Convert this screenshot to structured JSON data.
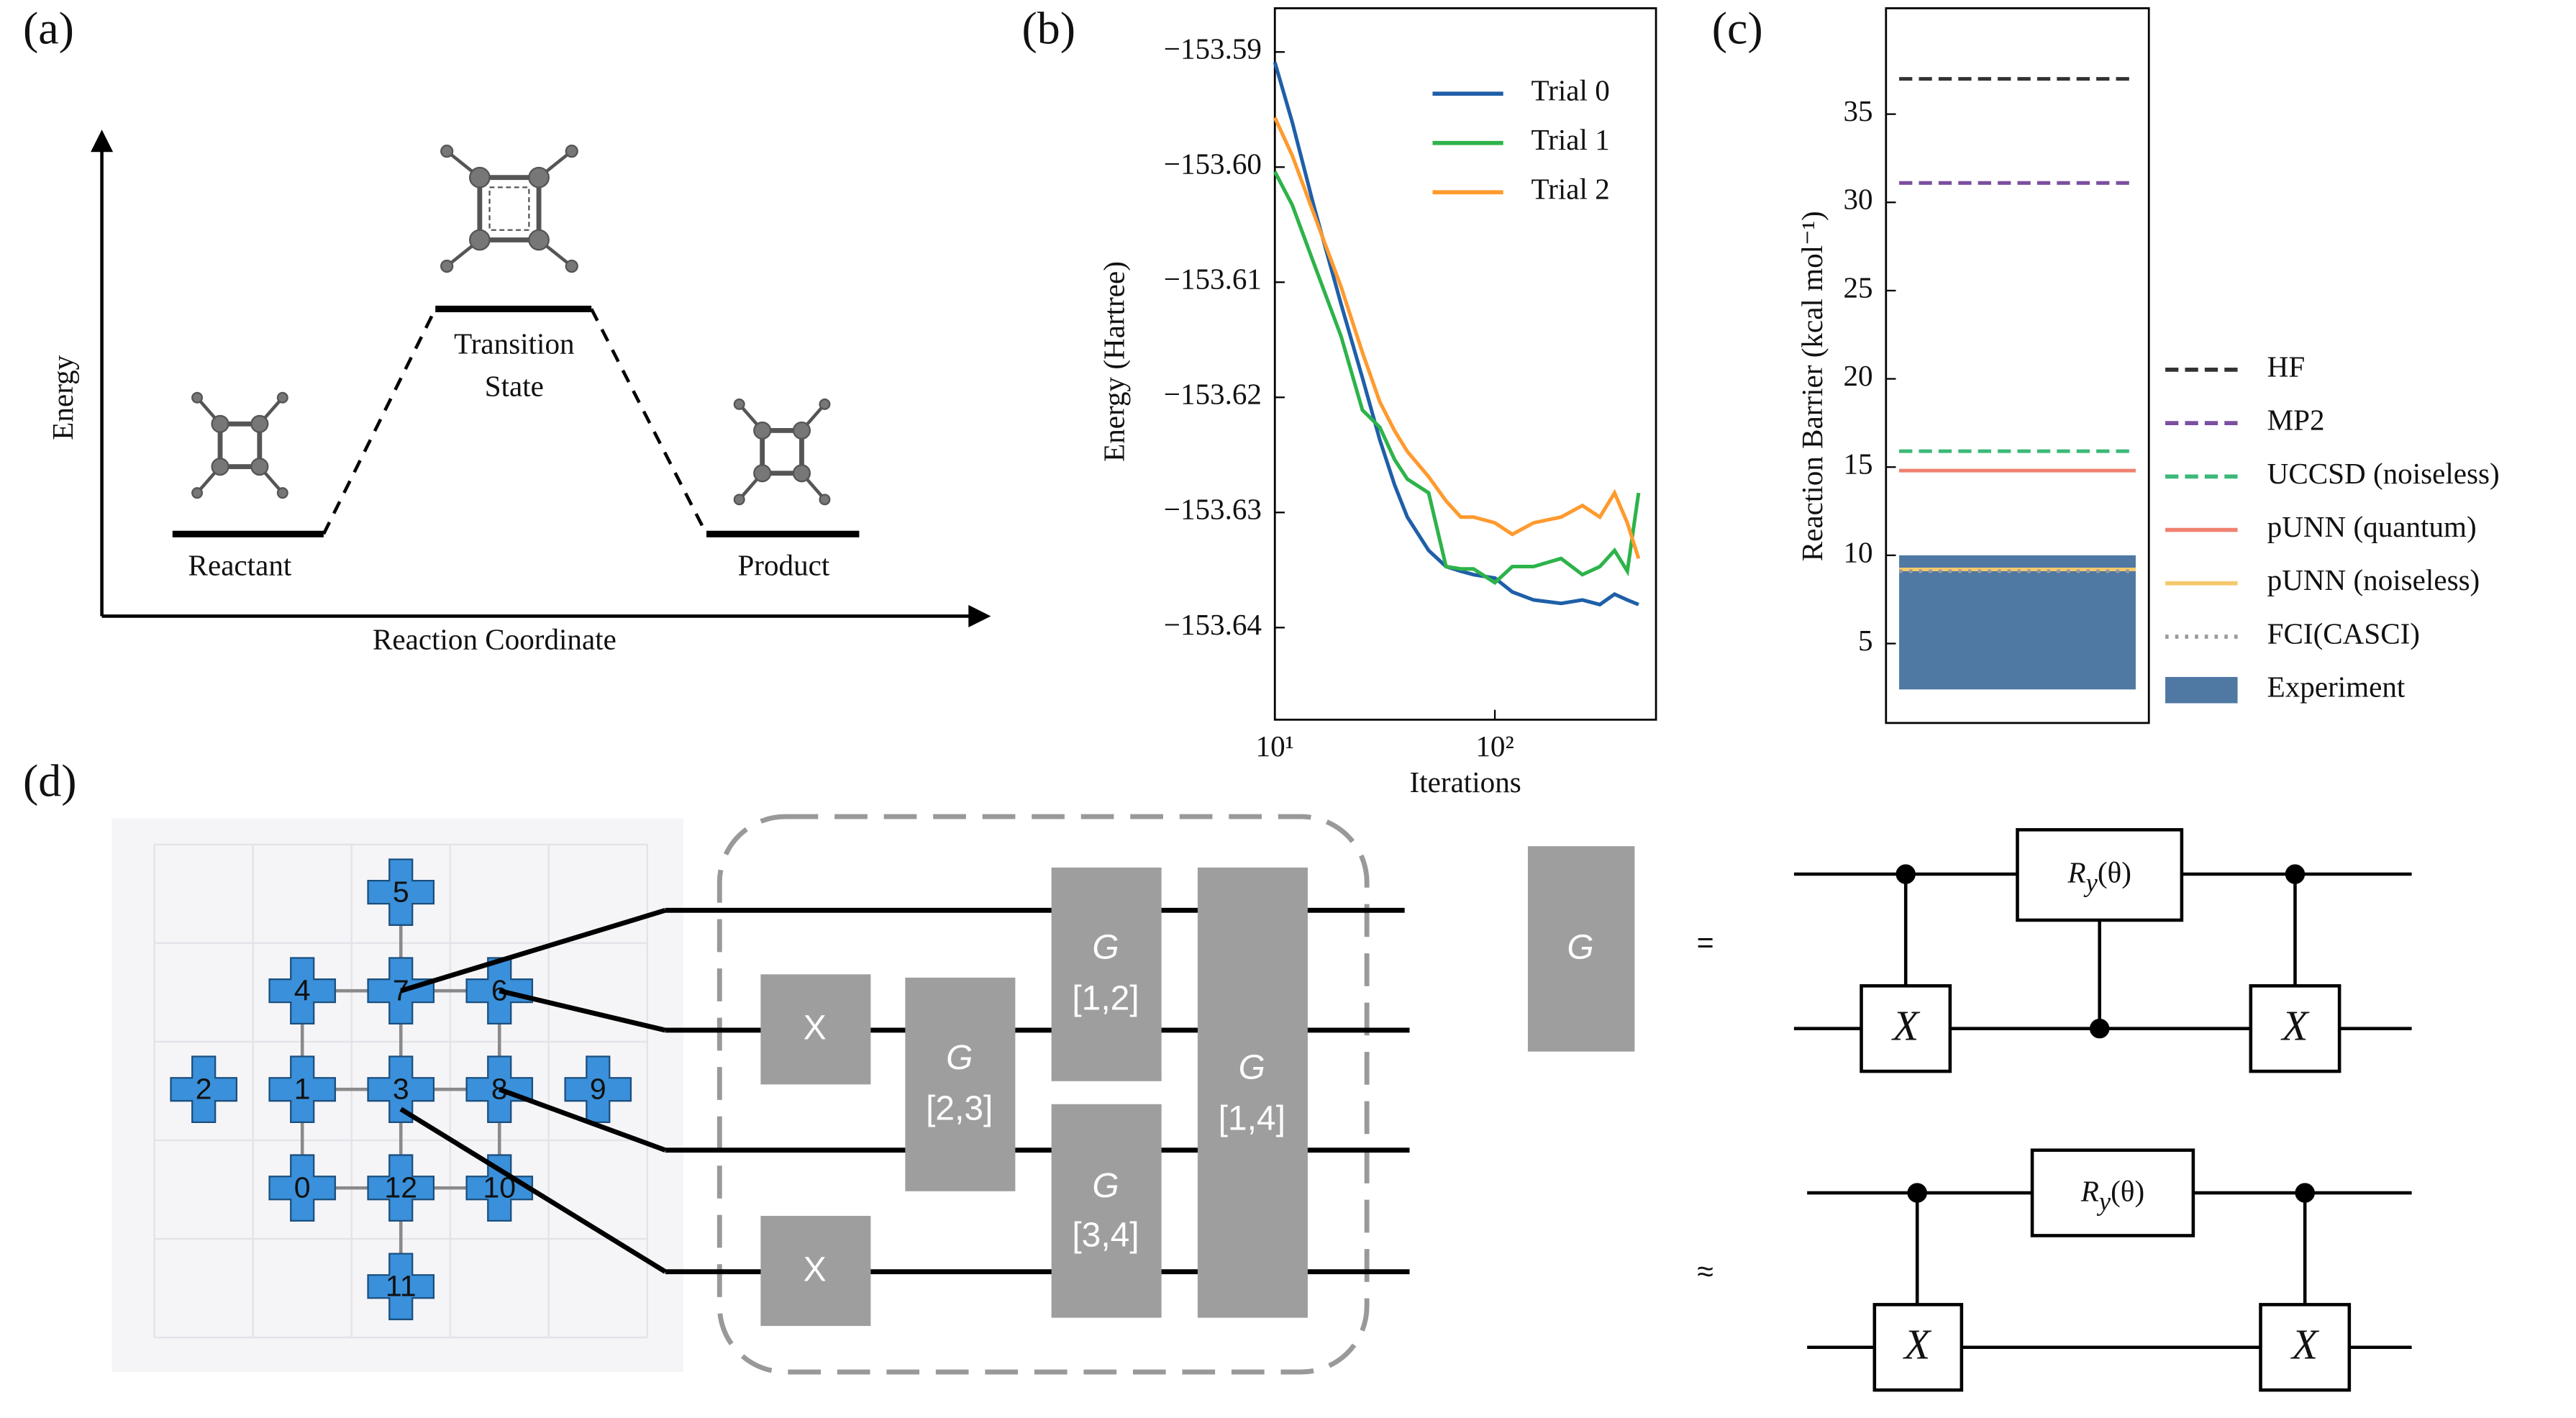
{
  "panel_labels": [
    "(a)",
    "(b)",
    "(c)",
    "(d)"
  ],
  "diagram_a": {
    "y_axis": "Energy",
    "x_axis": "Reaction Coordinate",
    "reactant": "Reactant",
    "transition_state": [
      "Transition",
      "State"
    ],
    "product": "Product"
  },
  "chart_data": [
    {
      "type": "line",
      "x_label": "Iterations",
      "y_label": "Energy (Hartree)",
      "x_scale": "log",
      "x": [
        10,
        12,
        15,
        20,
        25,
        30,
        35,
        40,
        50,
        60,
        70,
        80,
        100,
        120,
        150,
        200,
        250,
        300,
        350,
        400,
        450
      ],
      "series": [
        {
          "name": "Trial 0",
          "color": "#1f5fa8",
          "values": [
            -153.5909,
            -153.5961,
            -153.6033,
            -153.6119,
            -153.6183,
            -153.6237,
            -153.6276,
            -153.6304,
            -153.6333,
            -153.6347,
            -153.6351,
            -153.6354,
            -153.6357,
            -153.6369,
            -153.6376,
            -153.6379,
            -153.6376,
            -153.638,
            -153.6371,
            -153.6376,
            -153.638
          ]
        },
        {
          "name": "Trial 1",
          "color": "#2db34a",
          "values": [
            -153.6004,
            -153.6033,
            -153.6083,
            -153.6147,
            -153.6211,
            -153.6226,
            -153.6254,
            -153.6271,
            -153.6283,
            -153.6347,
            -153.6349,
            -153.6349,
            -153.6361,
            -153.6347,
            -153.6347,
            -153.634,
            -153.6354,
            -153.6347,
            -153.6333,
            -153.6351,
            -153.6283
          ]
        },
        {
          "name": "Trial 2",
          "color": "#ff9a2e",
          "values": [
            -153.5957,
            -153.599,
            -153.604,
            -153.6104,
            -153.6161,
            -153.6204,
            -153.6229,
            -153.6247,
            -153.6269,
            -153.629,
            -153.6304,
            -153.6304,
            -153.6309,
            -153.6319,
            -153.6309,
            -153.6304,
            -153.6294,
            -153.6304,
            -153.6283,
            -153.6309,
            -153.634
          ]
        }
      ],
      "xlim": [
        10,
        540
      ],
      "ylim": [
        -153.648,
        -153.5862
      ],
      "xticks": [
        {
          "value": 10,
          "label": "10¹"
        },
        {
          "value": 100,
          "label": "10²"
        }
      ],
      "yticks": [
        {
          "value": -153.59,
          "label": "−153.59"
        },
        {
          "value": -153.6,
          "label": "−153.60"
        },
        {
          "value": -153.61,
          "label": "−153.61"
        },
        {
          "value": -153.62,
          "label": "−153.62"
        },
        {
          "value": -153.63,
          "label": "−153.63"
        },
        {
          "value": -153.64,
          "label": "−153.64"
        }
      ],
      "legend": "upper right"
    },
    {
      "type": "hline",
      "y_label": "Reaction Barrier (kcal mol⁻¹)",
      "series": [
        {
          "name": "HF",
          "color": "#333333",
          "style": "dashed",
          "values": [
            37.0
          ]
        },
        {
          "name": "MP2",
          "color": "#7b4ea0",
          "style": "dashed",
          "values": [
            31.1
          ]
        },
        {
          "name": "UCCSD (noiseless)",
          "color": "#3cb878",
          "style": "dashed",
          "values": [
            15.9
          ]
        },
        {
          "name": "pUNN (quantum)",
          "color": "#f08070",
          "style": "solid",
          "values": [
            14.8
          ]
        },
        {
          "name": "pUNN (noiseless)",
          "color": "#f5c96b",
          "style": "solid",
          "values": [
            9.2
          ]
        },
        {
          "name": "FCI(CASCI)",
          "color": "#999999",
          "style": "dotted",
          "values": [
            9.1
          ]
        },
        {
          "name": "Experiment",
          "color": "#4f78a3",
          "style": "band",
          "values": [
            2.4,
            10.0
          ]
        }
      ],
      "ylim": [
        0.5,
        41
      ],
      "yticks": [
        5,
        10,
        15,
        20,
        25,
        30,
        35
      ],
      "legend": "outside right"
    }
  ],
  "diagram_d": {
    "qubits": [
      "5",
      "4",
      "7",
      "6",
      "2",
      "1",
      "3",
      "8",
      "9",
      "0",
      "12",
      "10",
      "11"
    ],
    "gates": [
      {
        "name": "X"
      },
      {
        "name": "X"
      },
      {
        "name": "G",
        "wires": "[2,3]"
      },
      {
        "name": "G",
        "wires": "[1,2]"
      },
      {
        "name": "G",
        "wires": "[3,4]"
      },
      {
        "name": "G",
        "wires": "[1,4]"
      }
    ],
    "gate_symbol": "G",
    "equals": "=",
    "approx": "≈",
    "x_gate": "X",
    "rotation": {
      "symbol": "R",
      "subscript": "y",
      "argument": "(θ)"
    }
  }
}
